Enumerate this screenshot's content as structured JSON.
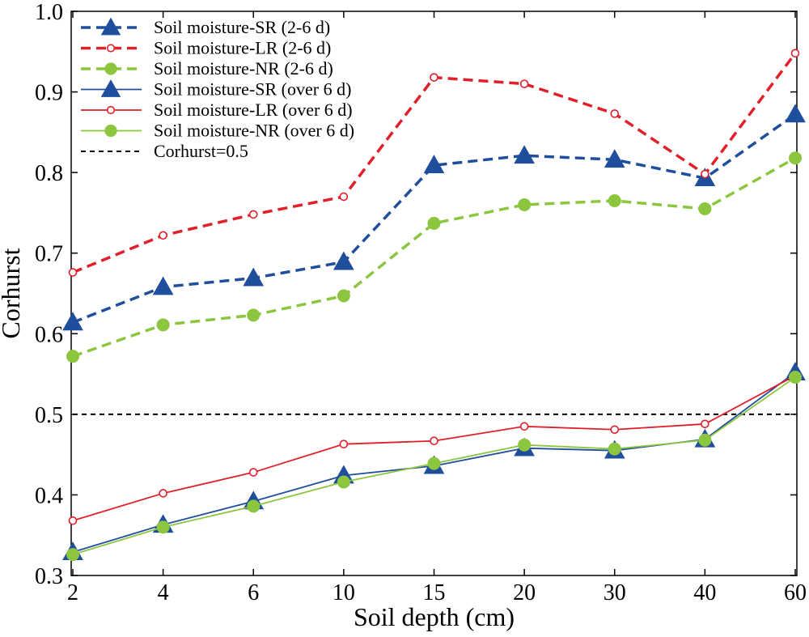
{
  "chart_data": {
    "type": "line",
    "title": "",
    "xlabel": "Soil depth (cm)",
    "ylabel": "Corhurst",
    "categories": [
      "2",
      "4",
      "6",
      "10",
      "15",
      "20",
      "30",
      "40",
      "60"
    ],
    "ylim": [
      0.3,
      1.0
    ],
    "yticks": [
      "0.3",
      "0.4",
      "0.5",
      "0.6",
      "0.7",
      "0.8",
      "0.9",
      "1.0"
    ],
    "grid": false,
    "legend_position": "top-left",
    "series": [
      {
        "name": "Soil moisture-SR (2-6 d)",
        "color": "#1f4e9c",
        "dash": "dashed",
        "marker": "triangle",
        "values": [
          0.614,
          0.658,
          0.669,
          0.689,
          0.809,
          0.821,
          0.816,
          0.793,
          0.872
        ]
      },
      {
        "name": "Soil moisture-LR (2-6 d)",
        "color": "#e0202a",
        "dash": "dashed",
        "marker": "open-circle",
        "values": [
          0.676,
          0.722,
          0.748,
          0.77,
          0.918,
          0.91,
          0.873,
          0.798,
          0.948
        ]
      },
      {
        "name": "Soil moisture-NR (2-6 d)",
        "color": "#8cc63f",
        "dash": "dashed",
        "marker": "filled-circle",
        "values": [
          0.572,
          0.611,
          0.623,
          0.647,
          0.737,
          0.76,
          0.765,
          0.755,
          0.818
        ]
      },
      {
        "name": "Soil moisture-SR (over 6 d)",
        "color": "#1f4e9c",
        "dash": "solid",
        "marker": "triangle",
        "values": [
          0.329,
          0.363,
          0.392,
          0.424,
          0.436,
          0.458,
          0.455,
          0.469,
          0.552
        ]
      },
      {
        "name": "Soil moisture-LR (over 6 d)",
        "color": "#e0202a",
        "dash": "solid",
        "marker": "open-circle",
        "values": [
          0.368,
          0.402,
          0.428,
          0.463,
          0.467,
          0.485,
          0.481,
          0.488,
          0.548
        ]
      },
      {
        "name": "Soil moisture-NR (over 6 d)",
        "color": "#8cc63f",
        "dash": "solid",
        "marker": "filled-circle",
        "values": [
          0.326,
          0.36,
          0.386,
          0.416,
          0.439,
          0.462,
          0.457,
          0.468,
          0.546
        ]
      }
    ],
    "reference_line": {
      "name": "Corhurst=0.5",
      "value": 0.5,
      "color": "#000000",
      "dash": "dashed"
    }
  }
}
